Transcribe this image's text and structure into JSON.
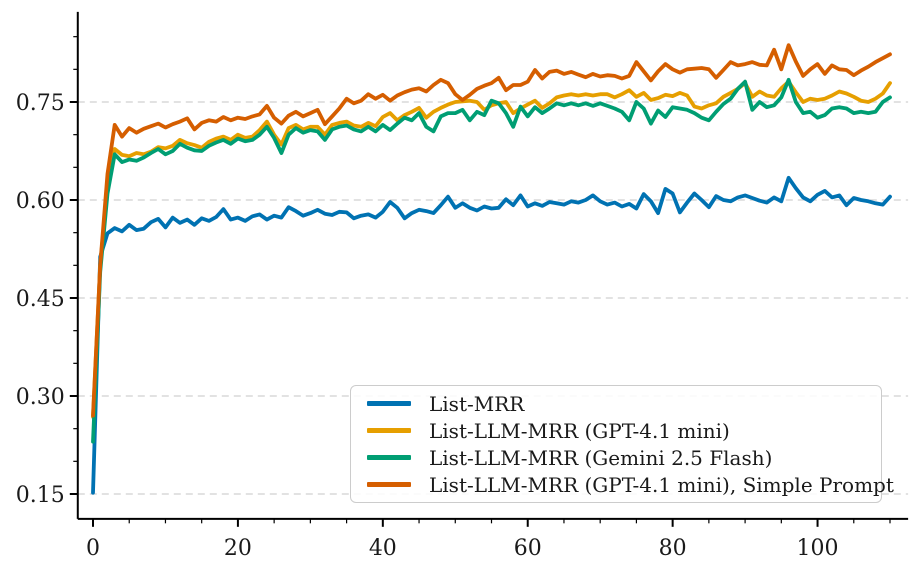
{
  "figure": {
    "background": "#ffffff",
    "text_color": "#1a1a1a",
    "spine_color": "#000000",
    "grid_color": "#d9d9d9",
    "legend_border_color": "#cccccc"
  },
  "chart_data": {
    "type": "line",
    "title": "",
    "xlabel": "",
    "ylabel": "",
    "xlim": [
      -2.1,
      112.5
    ],
    "ylim": [
      0.112,
      0.888
    ],
    "grid": "horizontal-dashed-at-major-y",
    "legend_position": "lower-right-inside",
    "x_start": 0,
    "x_step": 1,
    "n_points": 111,
    "x_major_ticks": [
      0,
      20,
      40,
      60,
      80,
      100
    ],
    "x_tick_labels": [
      "0",
      "20",
      "40",
      "60",
      "80",
      "100"
    ],
    "x_minor_step": 5,
    "y_major_ticks": [
      0.15,
      0.3,
      0.45,
      0.6,
      0.75
    ],
    "y_tick_labels": [
      "0.15",
      "0.30",
      "0.45",
      "0.60",
      "0.75"
    ],
    "y_minor_step": 0.05,
    "series": [
      {
        "name": "List-MRR",
        "color": "#0072B2",
        "values": [
          0.152,
          0.513,
          0.549,
          0.557,
          0.552,
          0.562,
          0.554,
          0.556,
          0.566,
          0.571,
          0.558,
          0.573,
          0.565,
          0.57,
          0.562,
          0.572,
          0.568,
          0.574,
          0.586,
          0.57,
          0.573,
          0.568,
          0.575,
          0.578,
          0.57,
          0.576,
          0.573,
          0.589,
          0.583,
          0.576,
          0.58,
          0.585,
          0.579,
          0.577,
          0.582,
          0.581,
          0.572,
          0.576,
          0.578,
          0.573,
          0.582,
          0.597,
          0.588,
          0.572,
          0.58,
          0.585,
          0.583,
          0.58,
          0.592,
          0.605,
          0.588,
          0.595,
          0.588,
          0.584,
          0.59,
          0.587,
          0.588,
          0.601,
          0.592,
          0.607,
          0.59,
          0.595,
          0.591,
          0.597,
          0.595,
          0.593,
          0.598,
          0.596,
          0.6,
          0.607,
          0.598,
          0.593,
          0.596,
          0.59,
          0.594,
          0.587,
          0.609,
          0.598,
          0.58,
          0.617,
          0.61,
          0.581,
          0.596,
          0.61,
          0.6,
          0.589,
          0.606,
          0.6,
          0.598,
          0.604,
          0.607,
          0.603,
          0.599,
          0.596,
          0.604,
          0.598,
          0.634,
          0.618,
          0.604,
          0.598,
          0.608,
          0.614,
          0.604,
          0.607,
          0.592,
          0.603,
          0.6,
          0.598,
          0.595,
          0.593,
          0.605
        ]
      },
      {
        "name": "List-LLM-MRR (GPT-4.1 mini)",
        "color": "#E69F00",
        "values": [
          0.268,
          0.5,
          0.62,
          0.678,
          0.669,
          0.667,
          0.672,
          0.67,
          0.674,
          0.681,
          0.679,
          0.683,
          0.692,
          0.687,
          0.684,
          0.68,
          0.689,
          0.694,
          0.697,
          0.692,
          0.7,
          0.695,
          0.697,
          0.707,
          0.72,
          0.7,
          0.685,
          0.71,
          0.715,
          0.708,
          0.712,
          0.712,
          0.7,
          0.715,
          0.718,
          0.72,
          0.714,
          0.712,
          0.718,
          0.713,
          0.727,
          0.733,
          0.722,
          0.73,
          0.735,
          0.741,
          0.726,
          0.735,
          0.741,
          0.746,
          0.75,
          0.751,
          0.752,
          0.75,
          0.738,
          0.745,
          0.748,
          0.75,
          0.733,
          0.74,
          0.746,
          0.752,
          0.741,
          0.748,
          0.757,
          0.76,
          0.762,
          0.76,
          0.762,
          0.76,
          0.762,
          0.762,
          0.757,
          0.762,
          0.768,
          0.758,
          0.764,
          0.753,
          0.756,
          0.761,
          0.759,
          0.764,
          0.76,
          0.743,
          0.74,
          0.745,
          0.748,
          0.758,
          0.764,
          0.77,
          0.779,
          0.758,
          0.766,
          0.76,
          0.758,
          0.771,
          0.781,
          0.765,
          0.75,
          0.755,
          0.753,
          0.755,
          0.76,
          0.766,
          0.763,
          0.758,
          0.752,
          0.75,
          0.755,
          0.763,
          0.779
        ]
      },
      {
        "name": "List-LLM-MRR (Gemini 2.5 Flash)",
        "color": "#009E73",
        "values": [
          0.23,
          0.49,
          0.61,
          0.67,
          0.658,
          0.662,
          0.66,
          0.665,
          0.672,
          0.678,
          0.67,
          0.675,
          0.686,
          0.68,
          0.676,
          0.675,
          0.683,
          0.688,
          0.692,
          0.686,
          0.694,
          0.69,
          0.692,
          0.7,
          0.712,
          0.695,
          0.672,
          0.7,
          0.71,
          0.703,
          0.707,
          0.705,
          0.692,
          0.708,
          0.712,
          0.714,
          0.708,
          0.705,
          0.712,
          0.705,
          0.715,
          0.707,
          0.717,
          0.726,
          0.722,
          0.733,
          0.712,
          0.705,
          0.728,
          0.733,
          0.733,
          0.738,
          0.722,
          0.735,
          0.73,
          0.752,
          0.748,
          0.733,
          0.712,
          0.743,
          0.728,
          0.742,
          0.733,
          0.74,
          0.748,
          0.745,
          0.748,
          0.745,
          0.748,
          0.744,
          0.748,
          0.744,
          0.74,
          0.735,
          0.722,
          0.75,
          0.74,
          0.717,
          0.737,
          0.727,
          0.742,
          0.74,
          0.738,
          0.733,
          0.726,
          0.722,
          0.735,
          0.747,
          0.755,
          0.77,
          0.781,
          0.738,
          0.75,
          0.742,
          0.745,
          0.757,
          0.784,
          0.75,
          0.733,
          0.735,
          0.726,
          0.73,
          0.74,
          0.742,
          0.74,
          0.733,
          0.735,
          0.733,
          0.735,
          0.75,
          0.757
        ]
      },
      {
        "name": "List-LLM-MRR (GPT-4.1 mini), Simple Prompt",
        "color": "#D55E00",
        "values": [
          0.27,
          0.5,
          0.64,
          0.715,
          0.697,
          0.71,
          0.703,
          0.709,
          0.713,
          0.717,
          0.711,
          0.716,
          0.72,
          0.725,
          0.708,
          0.718,
          0.722,
          0.72,
          0.727,
          0.722,
          0.726,
          0.724,
          0.728,
          0.731,
          0.744,
          0.726,
          0.717,
          0.729,
          0.735,
          0.728,
          0.733,
          0.738,
          0.716,
          0.728,
          0.74,
          0.755,
          0.748,
          0.752,
          0.762,
          0.755,
          0.761,
          0.752,
          0.76,
          0.765,
          0.769,
          0.771,
          0.766,
          0.776,
          0.784,
          0.779,
          0.762,
          0.753,
          0.761,
          0.77,
          0.775,
          0.779,
          0.787,
          0.768,
          0.776,
          0.776,
          0.781,
          0.799,
          0.786,
          0.796,
          0.798,
          0.793,
          0.796,
          0.792,
          0.788,
          0.793,
          0.789,
          0.791,
          0.79,
          0.786,
          0.79,
          0.811,
          0.797,
          0.783,
          0.797,
          0.808,
          0.8,
          0.795,
          0.8,
          0.801,
          0.802,
          0.8,
          0.787,
          0.799,
          0.811,
          0.806,
          0.808,
          0.811,
          0.807,
          0.806,
          0.83,
          0.8,
          0.837,
          0.812,
          0.79,
          0.8,
          0.808,
          0.793,
          0.806,
          0.8,
          0.799,
          0.791,
          0.798,
          0.804,
          0.811,
          0.817,
          0.823
        ]
      }
    ]
  }
}
